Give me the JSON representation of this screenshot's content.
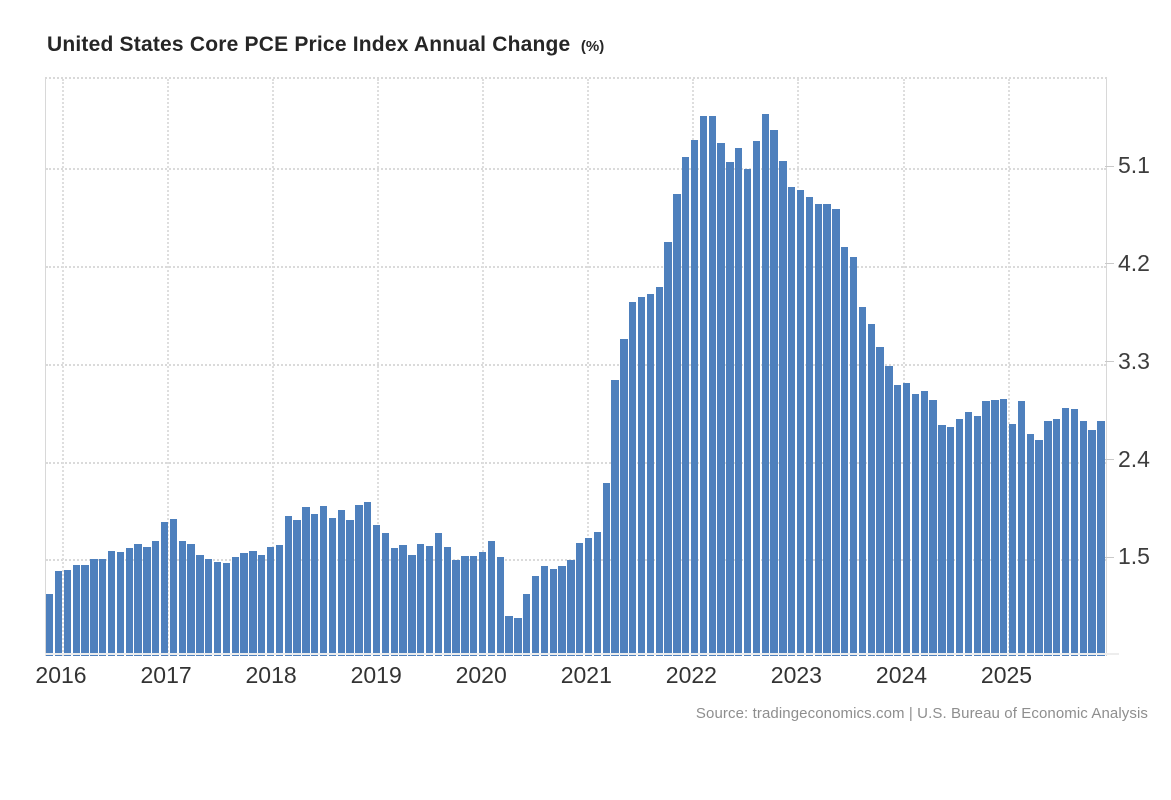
{
  "title": "United States Core PCE Price Index Annual Change",
  "title_unit": "(%)",
  "source_text": "Source: tradingeconomics.com | U.S. Bureau of Economic Analysis",
  "colors": {
    "bar": "#4e80bd",
    "grid": "#dadada",
    "plot_border": "#d8d8d8",
    "y_label": "#3d3d3d",
    "x_label": "#333333",
    "title": "#262626",
    "source": "#8e8e8e",
    "background": "#ffffff"
  },
  "chart_data": {
    "type": "bar",
    "title": "United States Core PCE Price Index Annual Change (%)",
    "xlabel": "",
    "ylabel": "%",
    "ylim": [
      0.61,
      5.92
    ],
    "y_ticks": [
      1.5,
      2.4,
      3.3,
      4.2,
      5.1
    ],
    "y_tick_labels": [
      "1.5",
      "2.4",
      "3.3",
      "4.2",
      "5.1"
    ],
    "grid": "dotted",
    "legend": "none",
    "x_year_labels": [
      "2016",
      "2017",
      "2018",
      "2019",
      "2020",
      "2021",
      "2022",
      "2023",
      "2024",
      "2025"
    ],
    "months": [
      "2015-12",
      "2016-01",
      "2016-02",
      "2016-03",
      "2016-04",
      "2016-05",
      "2016-06",
      "2016-07",
      "2016-08",
      "2016-09",
      "2016-10",
      "2016-11",
      "2016-12",
      "2017-01",
      "2017-02",
      "2017-03",
      "2017-04",
      "2017-05",
      "2017-06",
      "2017-07",
      "2017-08",
      "2017-09",
      "2017-10",
      "2017-11",
      "2017-12",
      "2018-01",
      "2018-02",
      "2018-03",
      "2018-04",
      "2018-05",
      "2018-06",
      "2018-07",
      "2018-08",
      "2018-09",
      "2018-10",
      "2018-11",
      "2018-12",
      "2019-01",
      "2019-02",
      "2019-03",
      "2019-04",
      "2019-05",
      "2019-06",
      "2019-07",
      "2019-08",
      "2019-09",
      "2019-10",
      "2019-11",
      "2019-12",
      "2020-01",
      "2020-02",
      "2020-03",
      "2020-04",
      "2020-05",
      "2020-06",
      "2020-07",
      "2020-08",
      "2020-09",
      "2020-10",
      "2020-11",
      "2020-12",
      "2021-01",
      "2021-02",
      "2021-03",
      "2021-04",
      "2021-05",
      "2021-06",
      "2021-07",
      "2021-08",
      "2021-09",
      "2021-10",
      "2021-11",
      "2021-12",
      "2022-01",
      "2022-02",
      "2022-03",
      "2022-04",
      "2022-05",
      "2022-06",
      "2022-07",
      "2022-08",
      "2022-09",
      "2022-10",
      "2022-11",
      "2022-12",
      "2023-01",
      "2023-02",
      "2023-03",
      "2023-04",
      "2023-05",
      "2023-06",
      "2023-07",
      "2023-08",
      "2023-09",
      "2023-10",
      "2023-11",
      "2023-12",
      "2024-01",
      "2024-02",
      "2024-03",
      "2024-04",
      "2024-05",
      "2024-06",
      "2024-07",
      "2024-08",
      "2024-09",
      "2024-10",
      "2024-11",
      "2024-12",
      "2025-01",
      "2025-02",
      "2025-03",
      "2025-04",
      "2025-05",
      "2025-06",
      "2025-07",
      "2025-08",
      "2025-09",
      "2025-10",
      "2025-11"
    ],
    "values": [
      1.18,
      1.39,
      1.4,
      1.45,
      1.45,
      1.5,
      1.5,
      1.58,
      1.57,
      1.6,
      1.64,
      1.61,
      1.67,
      1.84,
      1.87,
      1.67,
      1.64,
      1.54,
      1.5,
      1.48,
      1.47,
      1.52,
      1.56,
      1.58,
      1.54,
      1.61,
      1.63,
      1.9,
      1.86,
      1.98,
      1.92,
      1.99,
      1.88,
      1.95,
      1.86,
      2.0,
      2.03,
      1.82,
      1.74,
      1.6,
      1.63,
      1.54,
      1.64,
      1.62,
      1.74,
      1.61,
      1.49,
      1.53,
      1.53,
      1.57,
      1.67,
      1.52,
      0.98,
      0.96,
      1.18,
      1.35,
      1.44,
      1.41,
      1.44,
      1.49,
      1.65,
      1.7,
      1.75,
      2.2,
      3.15,
      3.53,
      3.87,
      3.91,
      3.94,
      4.01,
      4.42,
      4.86,
      5.2,
      5.36,
      5.58,
      5.58,
      5.33,
      5.16,
      5.29,
      5.09,
      5.35,
      5.6,
      5.45,
      5.17,
      4.93,
      4.9,
      4.83,
      4.77,
      4.77,
      4.72,
      4.37,
      4.28,
      3.82,
      3.67,
      3.45,
      3.28,
      3.1,
      3.12,
      3.02,
      3.05,
      2.97,
      2.74,
      2.72,
      2.79,
      2.86,
      2.82,
      2.96,
      2.97,
      2.98,
      2.75,
      2.96,
      2.65,
      2.6,
      2.77,
      2.79,
      2.89,
      2.88,
      2.77,
      2.69,
      2.77
    ]
  },
  "layout_hints": {
    "bars_total": 120,
    "first_bar_month": "2015-12",
    "last_bar_month": "2025-11"
  }
}
